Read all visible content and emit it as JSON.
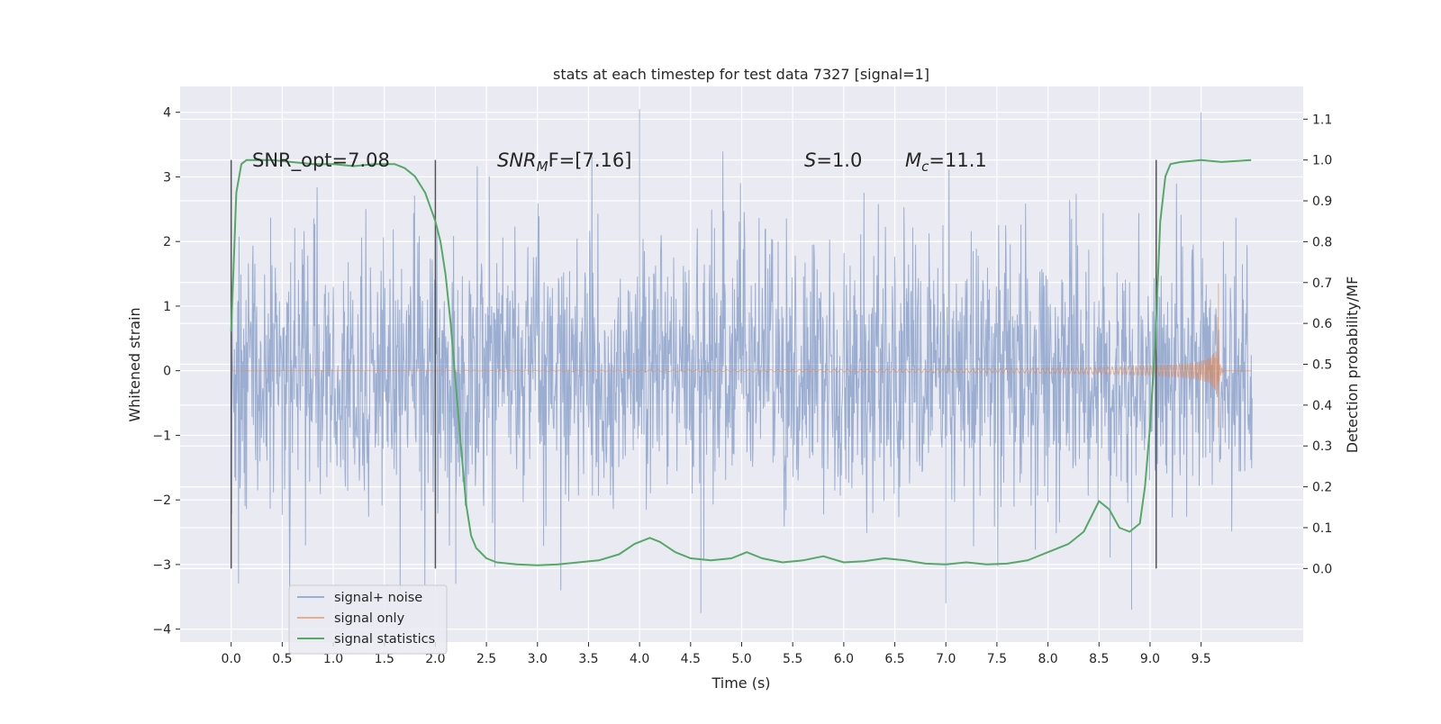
{
  "chart_data": {
    "type": "line",
    "title": "stats at each timestep for test data 7327 [signal=1]",
    "xlabel": "Time (s)",
    "ylabel": "Whitened strain",
    "ylabel_right": "Detection probability/MF",
    "xlim": [
      -0.5,
      10.5
    ],
    "ylim": [
      -4.2,
      4.4
    ],
    "ylim_right": [
      -0.18,
      1.18
    ],
    "xticks": [
      "0.0",
      "0.5",
      "1.0",
      "1.5",
      "2.0",
      "2.5",
      "3.0",
      "3.5",
      "4.0",
      "4.5",
      "5.0",
      "5.5",
      "6.0",
      "6.5",
      "7.0",
      "7.5",
      "8.0",
      "8.5",
      "9.0",
      "9.5"
    ],
    "yticks": [
      "−4",
      "−3",
      "−2",
      "−1",
      "0",
      "1",
      "2",
      "3",
      "4"
    ],
    "yticks_right": [
      "0.0",
      "0.1",
      "0.2",
      "0.3",
      "0.4",
      "0.5",
      "0.6",
      "0.7",
      "0.8",
      "0.9",
      "1.0",
      "1.1"
    ],
    "grid": true,
    "background": "#eaeaf2",
    "legend_position": "lower-left",
    "annotations": {
      "snr_opt": "SNR_opt=7.08",
      "snr_mf_prefix": "SNR",
      "snr_mf_sub": "M",
      "snr_mf_rest": "F=[7.16]",
      "s_prefix": "S",
      "s_rest": "=1.0",
      "mc_prefix": "M",
      "mc_sub": "c",
      "mc_rest": "=11.1"
    },
    "vertical_lines_x": [
      0.0,
      2.0,
      9.06
    ],
    "series": [
      {
        "name": "signal+ noise",
        "color": "#4c72b0",
        "description_values": {
          "x_start": 0.0,
          "x_end": 10.0,
          "envelope_abs_typical": 1.4,
          "extreme_max": 4.05,
          "extreme_min": -3.75
        }
      },
      {
        "name": "signal only",
        "color": "#dd8452",
        "chirp": {
          "x_start": 0.0,
          "x_end": 10.0,
          "merger_time": 9.67,
          "peak_pos": 1.35,
          "peak_neg": -0.88
        }
      },
      {
        "name": "signal statistics",
        "color": "#55a868",
        "x": [
          0.0,
          0.05,
          0.1,
          0.15,
          0.2,
          0.4,
          0.8,
          1.0,
          1.2,
          1.4,
          1.6,
          1.7,
          1.8,
          1.9,
          2.0,
          2.05,
          2.1,
          2.15,
          2.2,
          2.25,
          2.3,
          2.35,
          2.4,
          2.5,
          2.6,
          2.8,
          3.0,
          3.2,
          3.4,
          3.6,
          3.8,
          3.95,
          4.1,
          4.2,
          4.35,
          4.5,
          4.7,
          4.9,
          5.05,
          5.2,
          5.4,
          5.6,
          5.8,
          6.0,
          6.2,
          6.4,
          6.6,
          6.8,
          7.0,
          7.2,
          7.4,
          7.6,
          7.8,
          8.0,
          8.2,
          8.35,
          8.5,
          8.6,
          8.7,
          8.8,
          8.9,
          8.95,
          9.0,
          9.05,
          9.1,
          9.15,
          9.2,
          9.3,
          9.5,
          9.7,
          9.99
        ],
        "values": [
          0.58,
          0.92,
          0.99,
          1.0,
          1.0,
          1.0,
          0.99,
          0.99,
          0.985,
          0.99,
          0.99,
          0.98,
          0.96,
          0.92,
          0.85,
          0.8,
          0.72,
          0.6,
          0.45,
          0.3,
          0.16,
          0.08,
          0.05,
          0.025,
          0.015,
          0.01,
          0.008,
          0.01,
          0.015,
          0.02,
          0.035,
          0.06,
          0.075,
          0.065,
          0.04,
          0.025,
          0.02,
          0.025,
          0.04,
          0.025,
          0.015,
          0.02,
          0.03,
          0.015,
          0.018,
          0.025,
          0.02,
          0.012,
          0.01,
          0.015,
          0.01,
          0.012,
          0.02,
          0.04,
          0.06,
          0.09,
          0.165,
          0.145,
          0.1,
          0.09,
          0.11,
          0.2,
          0.35,
          0.55,
          0.85,
          0.96,
          0.99,
          0.995,
          1.0,
          0.995,
          1.0
        ]
      }
    ]
  }
}
